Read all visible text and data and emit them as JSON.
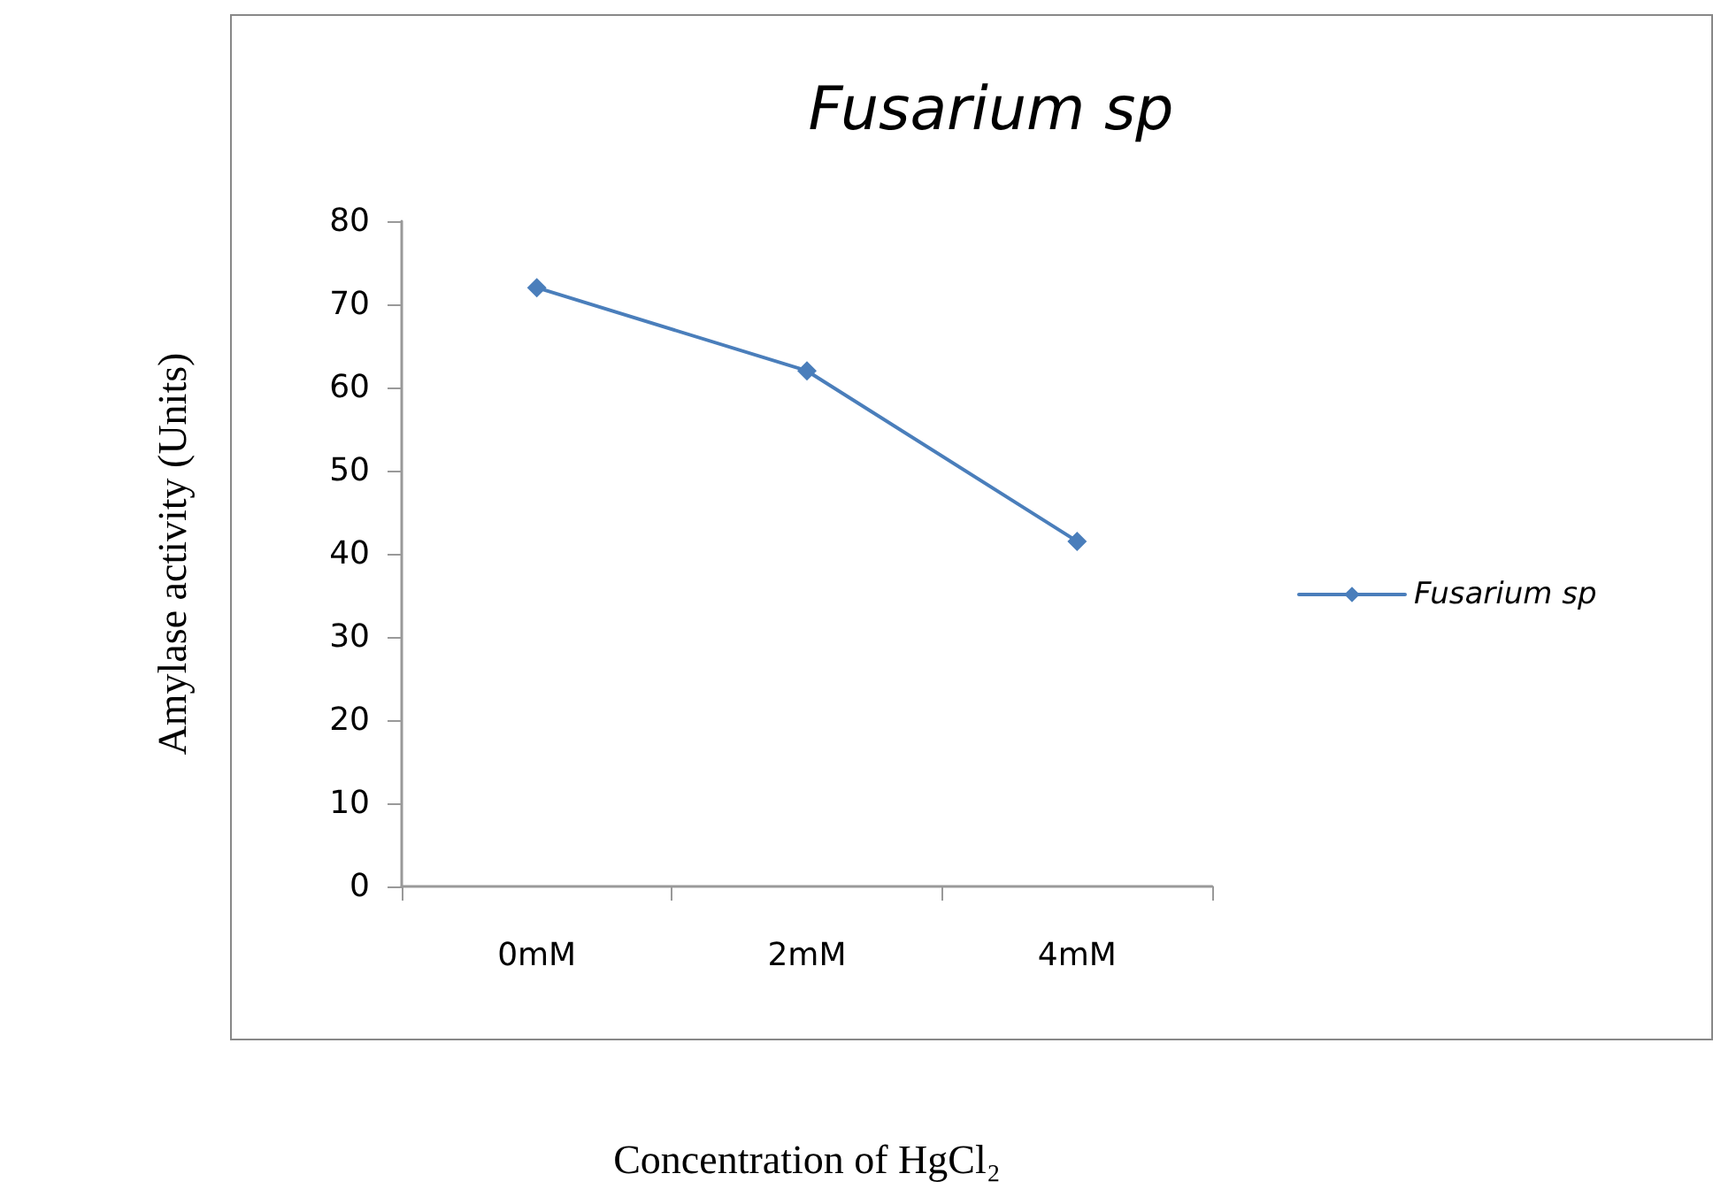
{
  "chart_data": {
    "type": "line",
    "title": "Fusarium sp",
    "xlabel": "Concentration of HgCl₂",
    "ylabel": "Amylase activity (Units)",
    "categories": [
      "0mM",
      "2mM",
      "4mM"
    ],
    "series": [
      {
        "name": "Fusarium sp",
        "color": "#4a7ebb",
        "values": [
          72,
          62,
          41.5
        ]
      }
    ],
    "ylim": [
      0,
      80
    ],
    "yticks": [
      0,
      10,
      20,
      30,
      40,
      50,
      60,
      70,
      80
    ],
    "grid": false,
    "legend": "right",
    "marker": "diamond",
    "line_style": "solid"
  }
}
